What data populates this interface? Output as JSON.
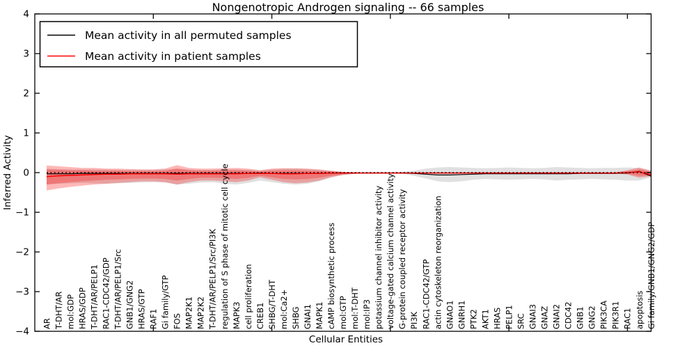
{
  "page": {
    "title": "Nongenotropic Androgen signaling -- 66 samples"
  },
  "axes": {
    "ylabel": "Inferred Activity",
    "xlabel": "Cellular Entities"
  },
  "legend": {
    "permuted_label": "Mean activity in all permuted samples",
    "patient_label": "Mean activity in patient samples"
  },
  "colors": {
    "permuted_line": "#000000",
    "patient_line": "#ff0000",
    "permuted_band": "#999999",
    "patient_band": "#ff0000",
    "axis": "#000000"
  },
  "chart_data": {
    "type": "line",
    "title": "Nongenotropic Androgen signaling -- 66 samples",
    "xlabel": "Cellular Entities",
    "ylabel": "Inferred Activity",
    "ylim": [
      -4,
      4
    ],
    "xlim": [
      0,
      52
    ],
    "ytick_values": [
      4,
      3,
      2,
      1,
      0,
      -1,
      -2,
      -3,
      -4
    ],
    "ytick_labels": [
      "4",
      "3",
      "2",
      "1",
      "0",
      "−1",
      "−2",
      "−3",
      "−4"
    ],
    "xtick_positions": [
      10,
      20,
      30,
      40,
      50
    ],
    "legend_position": "upper left",
    "grid": false,
    "zero_reference_line": 0,
    "categories": [
      "AR",
      "T-DHT/AR",
      "mol:GDP",
      "HRAS/GDP",
      "T-DHT/AR/PELP1",
      "RAC1-CDC42/GDP",
      "T-DHT/AR/PELP1/Src",
      "GNB1/GNG2",
      "HRAS/GTP",
      "RAF1",
      "Gi family/GTP",
      "FOS",
      "MAP2K1",
      "MAP2K2",
      "T-DHT/AR/PELP1/Src/PI3K",
      "regulation of S phase of mitotic cell cycle",
      "MAPK3",
      "cell proliferation",
      "CREB1",
      "SHBG/T-DHT",
      "mol:Ca2+",
      "SHBG",
      "GNAI1",
      "MAPK1",
      "cAMP biosynthetic process",
      "mol:GTP",
      "mol:T-DHT",
      "mol:IP3",
      "potassium channel inhibitor activity",
      "voltage-gated calcium channel activity",
      "G-protein coupled receptor activity",
      "PI3K",
      "RAC1-CDC42/GTP",
      "actin cytoskeleton reorganization",
      "GNAO1",
      "GNRH1",
      "PTK2",
      "AKT1",
      "HRAS",
      "PELP1",
      "SRC",
      "GNAI3",
      "GNAZ",
      "GNAI2",
      "CDC42",
      "GNB1",
      "GNG2",
      "PIK3CA",
      "PIK3R1",
      "RAC1",
      "apoptosis",
      "Gi family/GNB1/GNG2/GDP"
    ],
    "series": [
      {
        "name": "Mean activity in all permuted samples",
        "color": "#000000",
        "values": [
          -0.03,
          -0.03,
          -0.03,
          -0.02,
          -0.02,
          -0.02,
          -0.02,
          -0.02,
          -0.02,
          -0.02,
          -0.02,
          -0.02,
          -0.02,
          -0.02,
          -0.02,
          -0.02,
          -0.02,
          -0.02,
          -0.01,
          -0.02,
          -0.02,
          -0.02,
          -0.02,
          -0.02,
          -0.01,
          -0.01,
          -0.01,
          -0.01,
          -0.01,
          -0.01,
          -0.01,
          -0.02,
          -0.04,
          -0.06,
          -0.06,
          -0.05,
          -0.04,
          -0.03,
          -0.03,
          -0.03,
          -0.03,
          -0.03,
          -0.03,
          -0.03,
          -0.03,
          -0.02,
          -0.02,
          -0.02,
          -0.02,
          -0.01,
          0.03,
          -0.09
        ]
      },
      {
        "name": "Mean activity in patient samples",
        "color": "#ff0000",
        "values": [
          -0.1,
          -0.08,
          -0.07,
          -0.06,
          -0.05,
          -0.04,
          -0.04,
          -0.03,
          -0.03,
          -0.03,
          -0.03,
          -0.04,
          -0.03,
          -0.03,
          -0.03,
          -0.03,
          -0.03,
          -0.02,
          -0.02,
          -0.02,
          -0.03,
          -0.03,
          -0.02,
          -0.02,
          -0.01,
          -0.01,
          -0.01,
          -0.01,
          -0.01,
          -0.01,
          -0.01,
          -0.01,
          -0.01,
          -0.01,
          -0.01,
          -0.01,
          -0.01,
          -0.01,
          -0.01,
          -0.01,
          -0.01,
          -0.01,
          -0.01,
          -0.01,
          -0.01,
          -0.01,
          -0.01,
          -0.01,
          -0.01,
          0.0,
          0.02,
          -0.06
        ]
      }
    ],
    "bands": {
      "permuted_low": [
        -0.3,
        -0.28,
        -0.27,
        -0.26,
        -0.27,
        -0.28,
        -0.27,
        -0.26,
        -0.25,
        -0.24,
        -0.25,
        -0.3,
        -0.28,
        -0.25,
        -0.24,
        -0.28,
        -0.3,
        -0.26,
        -0.2,
        -0.24,
        -0.28,
        -0.3,
        -0.28,
        -0.22,
        -0.12,
        -0.06,
        -0.03,
        -0.02,
        -0.02,
        -0.02,
        -0.03,
        -0.08,
        -0.15,
        -0.22,
        -0.24,
        -0.22,
        -0.18,
        -0.16,
        -0.17,
        -0.18,
        -0.17,
        -0.16,
        -0.17,
        -0.2,
        -0.18,
        -0.17,
        -0.16,
        -0.17,
        -0.18,
        -0.2,
        -0.2,
        -0.12
      ],
      "permuted_high": [
        0.1,
        0.09,
        0.08,
        0.08,
        0.08,
        0.08,
        0.07,
        0.07,
        0.07,
        0.07,
        0.08,
        0.1,
        0.08,
        0.07,
        0.07,
        0.08,
        0.08,
        0.07,
        0.06,
        0.08,
        0.1,
        0.1,
        0.09,
        0.07,
        0.04,
        0.02,
        0.01,
        0.01,
        0.01,
        0.01,
        0.02,
        0.05,
        0.1,
        0.13,
        0.14,
        0.13,
        0.12,
        0.11,
        0.12,
        0.13,
        0.12,
        0.11,
        0.12,
        0.14,
        0.13,
        0.12,
        0.11,
        0.12,
        0.12,
        0.13,
        0.12,
        0.06
      ],
      "patient_outer_low": [
        -0.45,
        -0.4,
        -0.36,
        -0.33,
        -0.3,
        -0.28,
        -0.26,
        -0.24,
        -0.22,
        -0.22,
        -0.24,
        -0.3,
        -0.24,
        -0.2,
        -0.2,
        -0.22,
        -0.24,
        -0.2,
        -0.12,
        -0.18,
        -0.24,
        -0.27,
        -0.25,
        -0.2,
        -0.12,
        -0.06,
        -0.03,
        -0.015,
        -0.015,
        -0.015,
        -0.015,
        -0.015,
        -0.015,
        -0.015,
        -0.015,
        -0.015,
        -0.015,
        -0.015,
        -0.015,
        -0.015,
        -0.015,
        -0.015,
        -0.015,
        -0.015,
        -0.015,
        -0.015,
        -0.015,
        -0.015,
        -0.015,
        -0.05,
        -0.13,
        -0.09
      ],
      "patient_outer_high": [
        0.18,
        0.16,
        0.14,
        0.12,
        0.12,
        0.1,
        0.1,
        0.09,
        0.08,
        0.08,
        0.1,
        0.19,
        0.12,
        0.1,
        0.1,
        0.11,
        0.12,
        0.1,
        0.06,
        0.1,
        0.11,
        0.11,
        0.1,
        0.08,
        0.05,
        0.02,
        0.01,
        0.005,
        0.005,
        0.005,
        0.005,
        0.005,
        0.005,
        0.005,
        0.005,
        0.005,
        0.005,
        0.005,
        0.005,
        0.005,
        0.005,
        0.005,
        0.005,
        0.005,
        0.005,
        0.005,
        0.005,
        0.005,
        0.005,
        0.06,
        0.13,
        0.04
      ],
      "patient_inner_low": [
        -0.3,
        -0.27,
        -0.24,
        -0.22,
        -0.2,
        -0.18,
        -0.17,
        -0.16,
        -0.15,
        -0.15,
        -0.16,
        -0.2,
        -0.16,
        -0.13,
        -0.13,
        -0.14,
        -0.16,
        -0.13,
        -0.08,
        -0.12,
        -0.16,
        -0.17,
        -0.16,
        -0.13,
        -0.08,
        -0.04,
        -0.02,
        -0.012,
        -0.012,
        -0.012,
        -0.012,
        -0.012,
        -0.012,
        -0.012,
        -0.012,
        -0.012,
        -0.012,
        -0.012,
        -0.012,
        -0.012,
        -0.012,
        -0.012,
        -0.012,
        -0.012,
        -0.012,
        -0.012,
        -0.012,
        -0.012,
        -0.012,
        -0.03,
        -0.08,
        -0.07
      ],
      "patient_inner_high": [
        0.08,
        0.07,
        0.06,
        0.06,
        0.05,
        0.05,
        0.05,
        0.04,
        0.04,
        0.04,
        0.05,
        0.1,
        0.06,
        0.05,
        0.05,
        0.06,
        0.06,
        0.05,
        0.03,
        0.05,
        0.06,
        0.06,
        0.05,
        0.04,
        0.03,
        0.01,
        0.005,
        0.003,
        0.003,
        0.003,
        0.003,
        0.003,
        0.003,
        0.003,
        0.003,
        0.003,
        0.003,
        0.003,
        0.003,
        0.003,
        0.003,
        0.003,
        0.003,
        0.003,
        0.003,
        0.003,
        0.003,
        0.003,
        0.003,
        0.04,
        0.08,
        0.02
      ]
    }
  }
}
